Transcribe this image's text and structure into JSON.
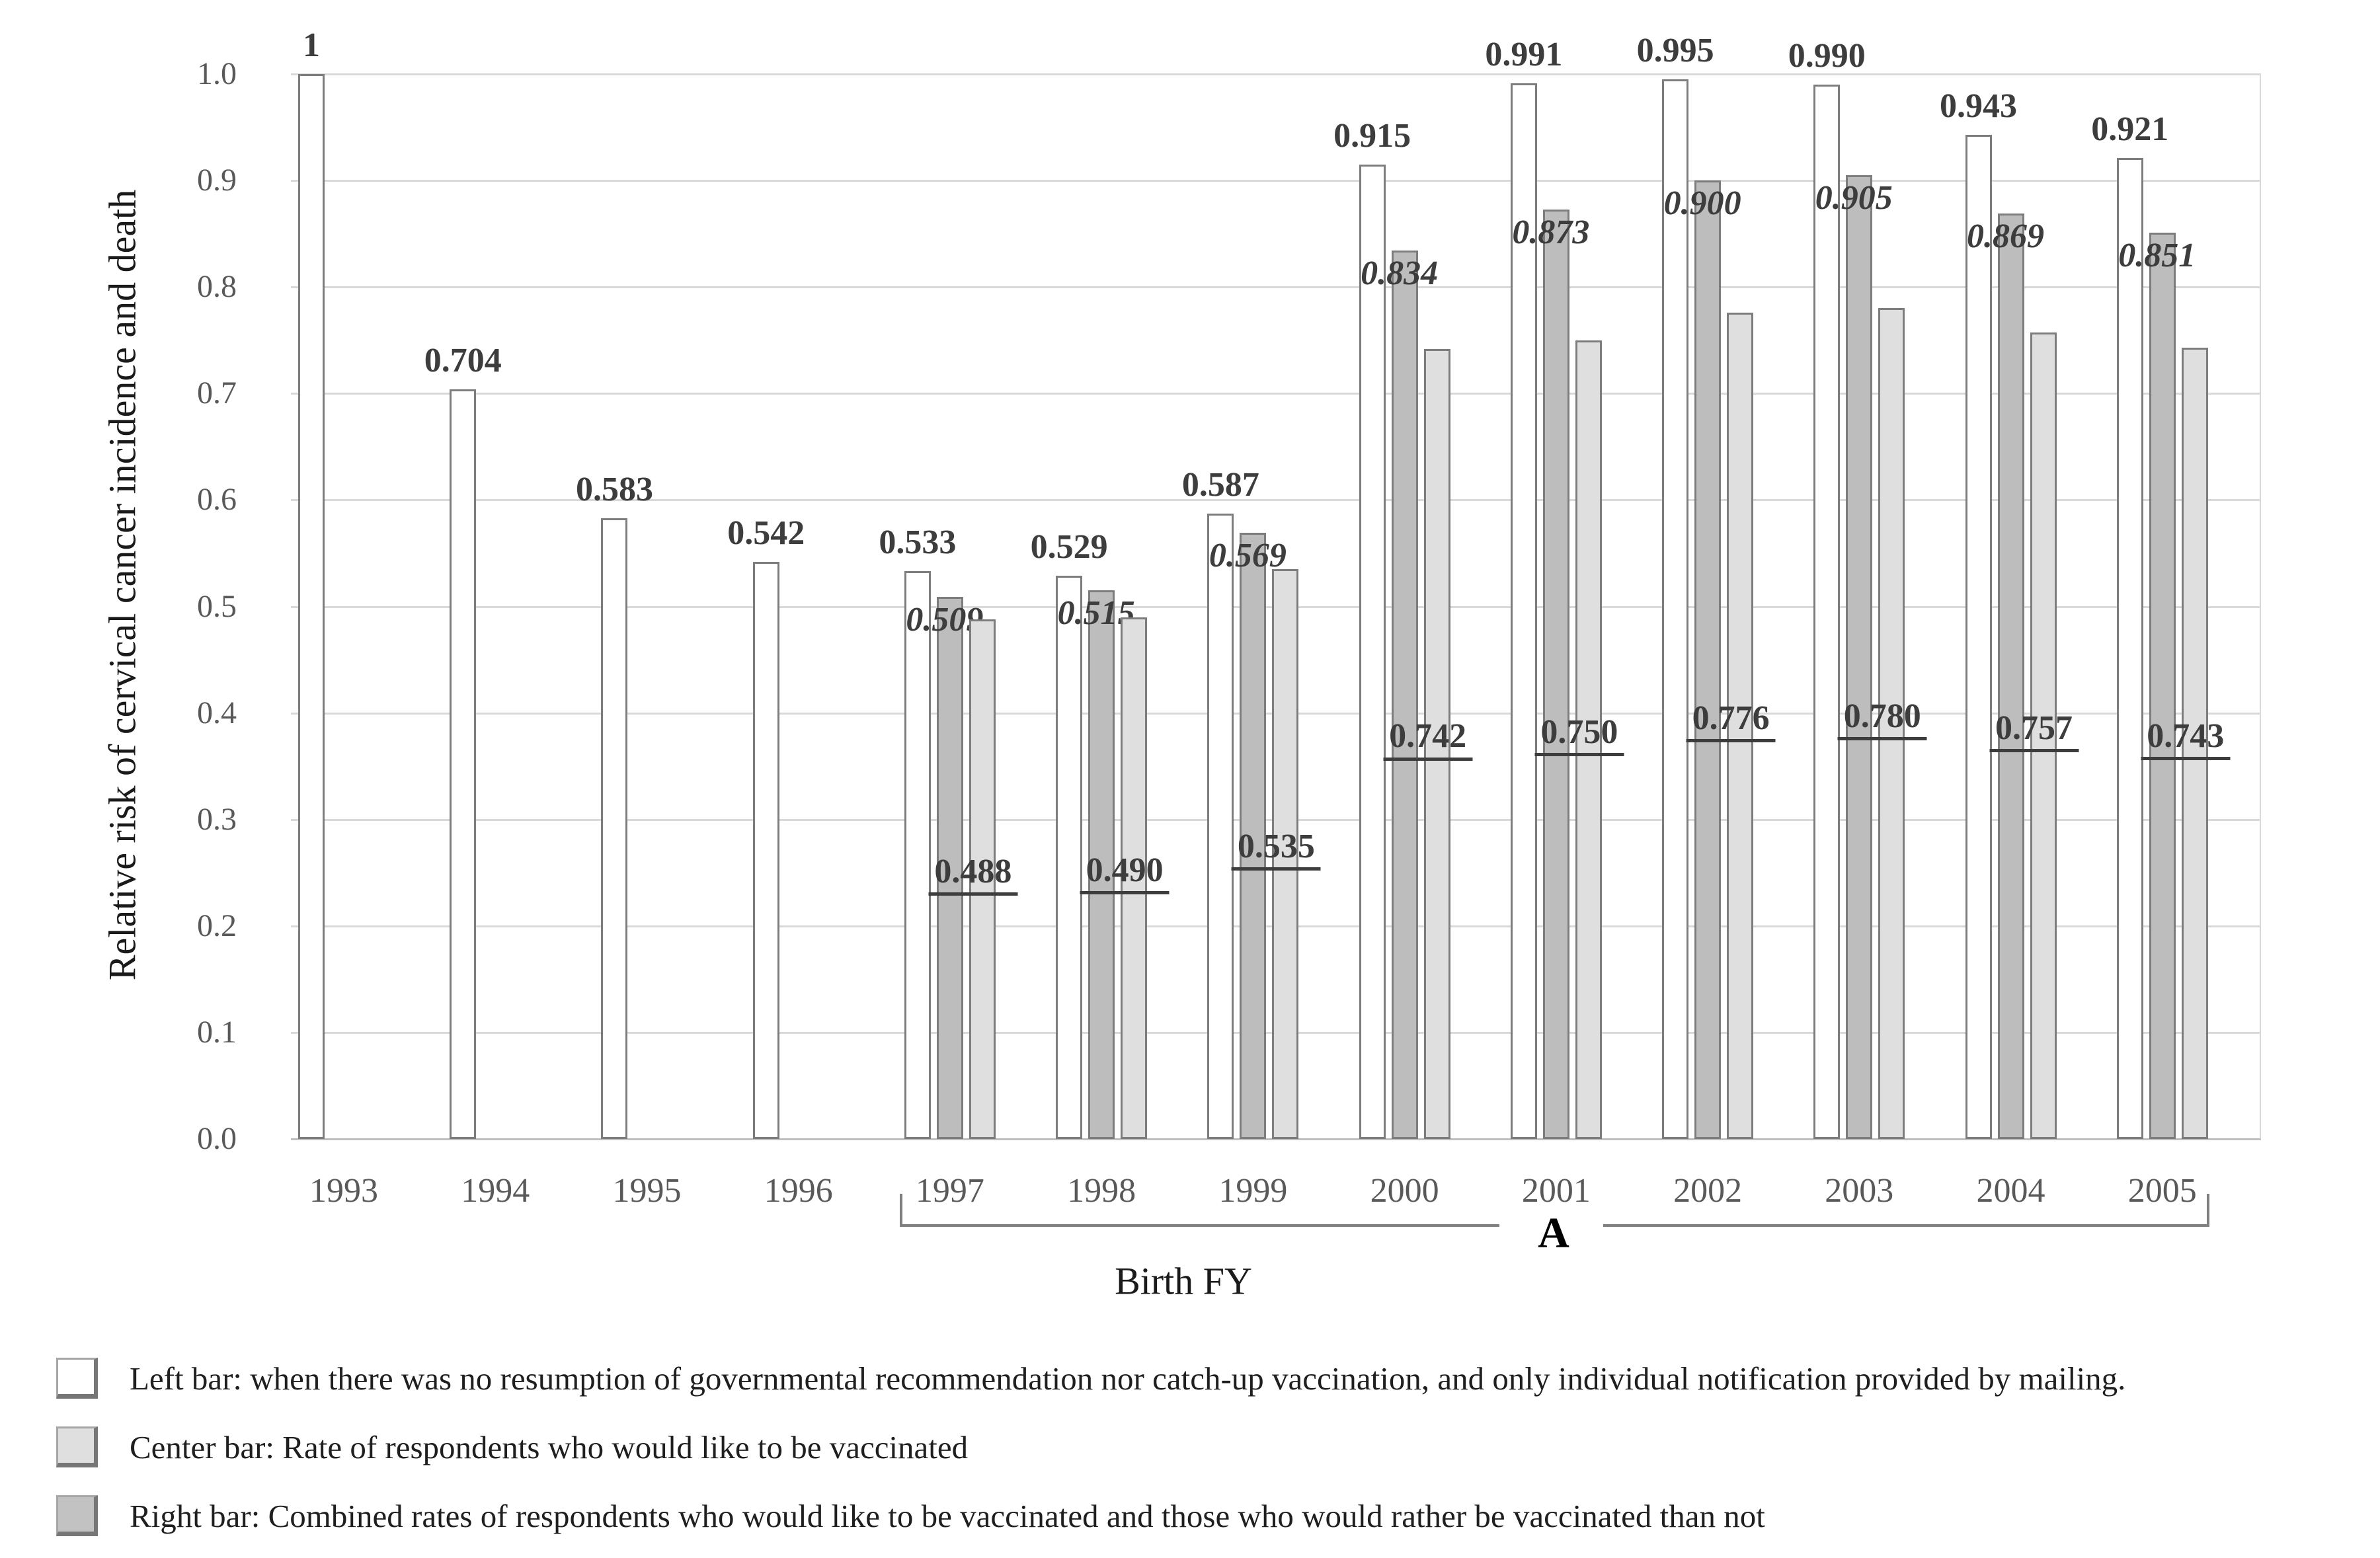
{
  "figure": {
    "y_axis_title": "Relative risk of cervical cancer incidence and death",
    "x_axis_title": "Birth FY",
    "group_annotation": "A"
  },
  "chart_data": {
    "type": "bar",
    "title": "",
    "xlabel": "Birth FY",
    "ylabel": "Relative risk of cervical cancer incidence and death",
    "ylim": [
      0.0,
      1.0
    ],
    "ytick_step": 0.1,
    "yticks": [
      "0.0",
      "0.1",
      "0.2",
      "0.3",
      "0.4",
      "0.5",
      "0.6",
      "0.7",
      "0.8",
      "0.9",
      "1.0"
    ],
    "grid": "horizontal",
    "categories": [
      "1993",
      "1994",
      "1995",
      "1996",
      "1997",
      "1998",
      "1999",
      "2000",
      "2001",
      "2002",
      "2003",
      "2004",
      "2005"
    ],
    "series": [
      {
        "name": "Left bar",
        "role": "left",
        "fill": "#ffffff",
        "border": "#7d7d7d",
        "label_style": "bold",
        "values": [
          1,
          0.704,
          0.583,
          0.542,
          0.533,
          0.529,
          0.587,
          0.915,
          0.991,
          0.995,
          0.99,
          0.943,
          0.921
        ],
        "labels": [
          "1",
          "0.704",
          "0.583",
          "0.542",
          "0.533",
          "0.529",
          "0.587",
          "0.915",
          "0.991",
          "0.995",
          "0.990",
          "0.943",
          "0.921"
        ]
      },
      {
        "name": "Center bar",
        "role": "center",
        "fill": "#bdbdbd",
        "border": "#7d7d7d",
        "label_style": "bold-italic",
        "values": [
          null,
          null,
          null,
          null,
          0.509,
          0.515,
          0.569,
          0.834,
          0.873,
          0.9,
          0.905,
          0.869,
          0.851
        ],
        "labels": [
          null,
          null,
          null,
          null,
          "0.509",
          "0.515",
          "0.569",
          "0.834",
          "0.873",
          "0.900",
          "0.905",
          "0.869",
          "0.851"
        ]
      },
      {
        "name": "Right bar",
        "role": "right",
        "fill": "#dfdfdf",
        "border": "#7d7d7d",
        "label_style": "bold-underline",
        "values": [
          null,
          null,
          null,
          null,
          0.488,
          0.49,
          0.535,
          0.742,
          0.75,
          0.776,
          0.78,
          0.757,
          0.743
        ],
        "labels": [
          null,
          null,
          null,
          null,
          "0.488",
          "0.490",
          "0.535",
          "0.742",
          "0.750",
          "0.776",
          "0.780",
          "0.757",
          "0.743"
        ]
      }
    ],
    "bracket": {
      "label": "A",
      "from_category": "1997",
      "to_category": "2005"
    }
  },
  "legend": {
    "items": [
      {
        "swatch": "#ffffff",
        "label": "Left bar: when there was no resumption of governmental recommendation nor catch-up vaccination, and only individual notification provided by mailing."
      },
      {
        "swatch": "#dfdfdf",
        "label": "Center bar: Rate of respondents who would like to be vaccinated"
      },
      {
        "swatch": "#c2c2c2",
        "label": "Right bar: Combined rates of respondents who would like to be vaccinated and those who would rather be vaccinated than not"
      }
    ]
  },
  "colors": {
    "gridline": "#d9d9d9",
    "axis_line": "#bfbfbf",
    "tick_text": "#595959",
    "value_text": "#3d3d3d",
    "bracket": "#7f7f7f"
  }
}
